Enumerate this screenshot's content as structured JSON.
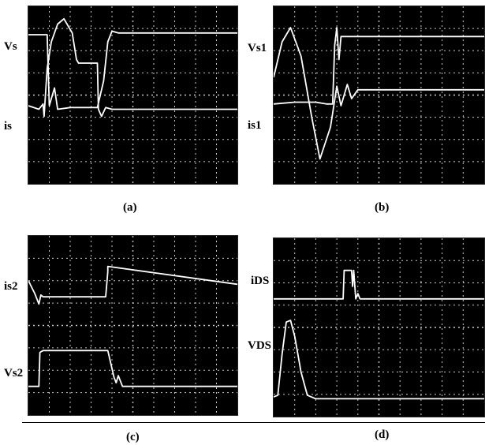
{
  "colors": {
    "screen_bg": "#000000",
    "grid": "#c8c8c8",
    "trace": "#ffffff"
  },
  "chart_data": [
    {
      "type": "line",
      "caption": "(a)",
      "grid": true,
      "series": [
        {
          "name": "Vs",
          "points": [
            [
              0,
              0.16
            ],
            [
              0.09,
              0.16
            ],
            [
              0.1,
              0.56
            ],
            [
              0.11,
              0.52
            ],
            [
              0.125,
              0.46
            ],
            [
              0.14,
              0.58
            ],
            [
              0.2,
              0.57
            ],
            [
              0.33,
              0.57
            ],
            [
              0.36,
              0.42
            ],
            [
              0.38,
              0.2
            ],
            [
              0.4,
              0.14
            ],
            [
              0.43,
              0.15
            ],
            [
              1,
              0.15
            ]
          ]
        },
        {
          "name": "is",
          "points": [
            [
              0,
              0.56
            ],
            [
              0.05,
              0.58
            ],
            [
              0.07,
              0.55
            ],
            [
              0.075,
              0.62
            ],
            [
              0.09,
              0.35
            ],
            [
              0.11,
              0.2
            ],
            [
              0.14,
              0.1
            ],
            [
              0.17,
              0.07
            ],
            [
              0.21,
              0.15
            ],
            [
              0.23,
              0.3
            ],
            [
              0.24,
              0.32
            ],
            [
              0.33,
              0.32
            ],
            [
              0.335,
              0.58
            ],
            [
              0.35,
              0.62
            ],
            [
              0.37,
              0.57
            ],
            [
              0.4,
              0.58
            ],
            [
              1,
              0.58
            ]
          ]
        }
      ]
    },
    {
      "type": "line",
      "caption": "(b)",
      "grid": true,
      "series": [
        {
          "name": "Vs1",
          "points": [
            [
              0,
              0.55
            ],
            [
              0.1,
              0.54
            ],
            [
              0.2,
              0.54
            ],
            [
              0.25,
              0.55
            ],
            [
              0.28,
              0.55
            ],
            [
              0.29,
              0.22
            ],
            [
              0.3,
              0.12
            ],
            [
              0.31,
              0.3
            ],
            [
              0.32,
              0.17
            ],
            [
              0.35,
              0.17
            ],
            [
              1,
              0.17
            ]
          ]
        },
        {
          "name": "is1",
          "points": [
            [
              0,
              0.4
            ],
            [
              0.04,
              0.2
            ],
            [
              0.08,
              0.12
            ],
            [
              0.13,
              0.28
            ],
            [
              0.18,
              0.62
            ],
            [
              0.22,
              0.86
            ],
            [
              0.27,
              0.68
            ],
            [
              0.3,
              0.45
            ],
            [
              0.32,
              0.56
            ],
            [
              0.35,
              0.44
            ],
            [
              0.37,
              0.52
            ],
            [
              0.4,
              0.47
            ],
            [
              1,
              0.47
            ]
          ]
        }
      ]
    },
    {
      "type": "line",
      "caption": "(c)",
      "grid": true,
      "series": [
        {
          "name": "is2",
          "points": [
            [
              0,
              0.25
            ],
            [
              0.03,
              0.32
            ],
            [
              0.05,
              0.38
            ],
            [
              0.06,
              0.33
            ],
            [
              0.07,
              0.34
            ],
            [
              0.2,
              0.34
            ],
            [
              0.37,
              0.34
            ],
            [
              0.38,
              0.2
            ],
            [
              0.38,
              0.17
            ],
            [
              1,
              0.27
            ]
          ]
        },
        {
          "name": "Vs2",
          "points": [
            [
              0,
              0.84
            ],
            [
              0.05,
              0.84
            ],
            [
              0.055,
              0.65
            ],
            [
              0.07,
              0.64
            ],
            [
              0.38,
              0.64
            ],
            [
              0.41,
              0.79
            ],
            [
              0.42,
              0.82
            ],
            [
              0.43,
              0.78
            ],
            [
              0.45,
              0.84
            ],
            [
              1,
              0.84
            ]
          ]
        }
      ]
    },
    {
      "type": "line",
      "caption": "(d)",
      "grid": true,
      "series": [
        {
          "name": "iDS",
          "points": [
            [
              0,
              0.34
            ],
            [
              0.2,
              0.34
            ],
            [
              0.33,
              0.34
            ],
            [
              0.335,
              0.18
            ],
            [
              0.37,
              0.18
            ],
            [
              0.375,
              0.27
            ],
            [
              0.38,
              0.18
            ],
            [
              0.39,
              0.34
            ],
            [
              0.4,
              0.31
            ],
            [
              0.41,
              0.34
            ],
            [
              1,
              0.34
            ]
          ]
        },
        {
          "name": "VDS",
          "points": [
            [
              0,
              0.89
            ],
            [
              0.02,
              0.88
            ],
            [
              0.04,
              0.65
            ],
            [
              0.06,
              0.47
            ],
            [
              0.08,
              0.46
            ],
            [
              0.1,
              0.55
            ],
            [
              0.13,
              0.75
            ],
            [
              0.16,
              0.88
            ],
            [
              0.2,
              0.9
            ],
            [
              1,
              0.9
            ]
          ]
        }
      ]
    }
  ]
}
